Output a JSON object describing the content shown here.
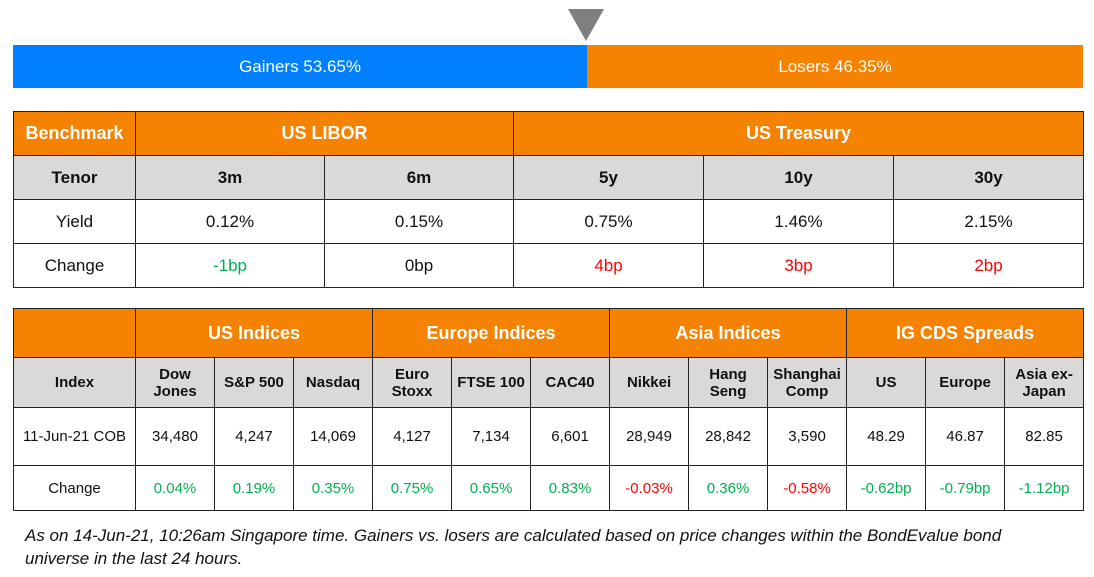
{
  "breadth": {
    "gainers_label": "Gainers 53.65%",
    "losers_label": "Losers 46.35%",
    "gainers_pct": 53.65,
    "losers_pct": 46.35,
    "colors": {
      "gainers": "#0080ff",
      "losers": "#f58200",
      "marker": "#7f7f7f"
    }
  },
  "rates": {
    "benchmark_label": "Benchmark",
    "groups": [
      "US LIBOR",
      "US Treasury"
    ],
    "tenor_label": "Tenor",
    "tenors": [
      "3m",
      "6m",
      "5y",
      "10y",
      "30y"
    ],
    "yield_label": "Yield",
    "yields": [
      "0.12%",
      "0.15%",
      "0.75%",
      "1.46%",
      "2.15%"
    ],
    "change_label": "Change",
    "changes": [
      "-1bp",
      "0bp",
      "4bp",
      "3bp",
      "2bp"
    ]
  },
  "indices": {
    "groups": [
      "US Indices",
      "Europe Indices",
      "Asia Indices",
      "IG CDS Spreads"
    ],
    "index_label": "Index",
    "names": [
      "Dow Jones",
      "S&P 500",
      "Nasdaq",
      "Euro Stoxx",
      "FTSE 100",
      "CAC40",
      "Nikkei",
      "Hang Seng",
      "Shanghai Comp",
      "US",
      "Europe",
      "Asia ex-Japan"
    ],
    "date_label": "11-Jun-21 COB",
    "values": [
      "34,480",
      "4,247",
      "14,069",
      "4,127",
      "7,134",
      "6,601",
      "28,949",
      "28,842",
      "3,590",
      "48.29",
      "46.87",
      "82.85"
    ],
    "change_label": "Change",
    "changes": [
      "0.04%",
      "0.19%",
      "0.35%",
      "0.75%",
      "0.65%",
      "0.83%",
      "-0.03%",
      "0.36%",
      "-0.58%",
      "-0.62bp",
      "-0.79bp",
      "-1.12bp"
    ]
  },
  "colors": {
    "header": "#f58200",
    "subheader": "#d9d9d9",
    "positive": "#00b050",
    "negative": "#ff0000"
  },
  "footnote": "As on 14-Jun-21, 10:26am Singapore time. Gainers vs. losers are calculated based on price changes within the BondEvalue bond universe in the last 24 hours."
}
